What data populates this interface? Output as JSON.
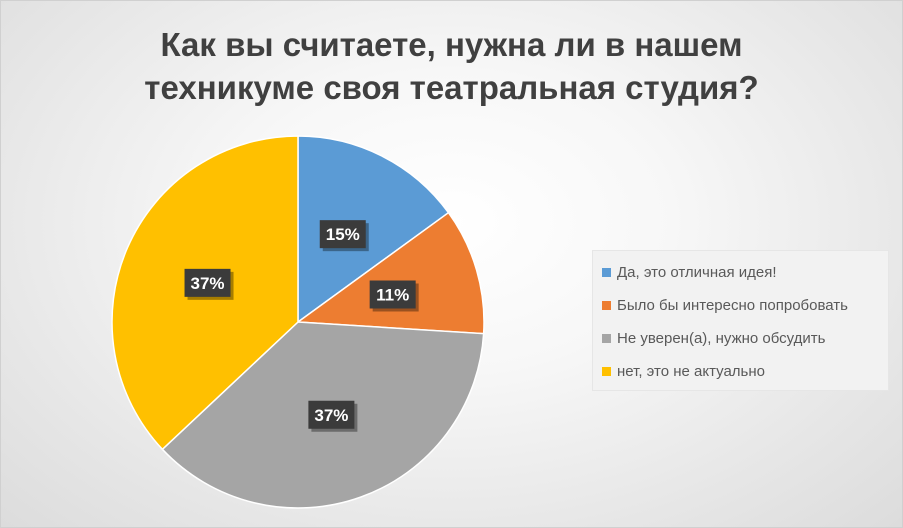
{
  "chart_data": {
    "type": "pie",
    "title": "Как вы считаете, нужна ли в нашем техникуме своя театральная студия?",
    "title_lines": [
      "Как вы считаете, нужна ли в нашем",
      "техникуме своя театральная студия?"
    ],
    "categories": [
      "Да, это отличная идея!",
      "Было бы интересно попробовать",
      "Не уверен(а), нужно обсудить",
      "нет, это не актуально"
    ],
    "values": [
      15,
      11,
      37,
      37
    ],
    "labels": [
      "15%",
      "11%",
      "37%",
      "37%"
    ],
    "colors": [
      "#5b9bd5",
      "#ed7d31",
      "#a5a5a5",
      "#ffc000"
    ],
    "legend_position": "right"
  }
}
